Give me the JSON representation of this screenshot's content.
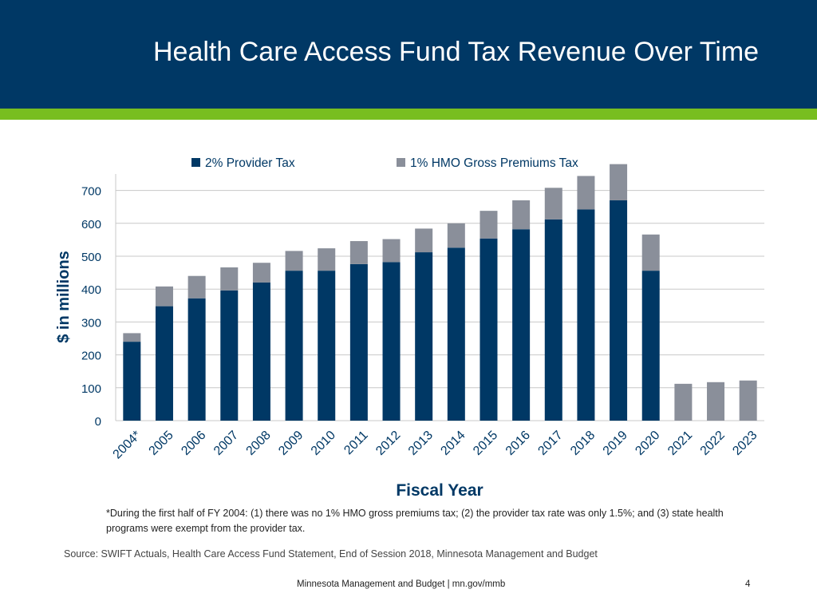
{
  "slide": {
    "title": "Health Care Access Fund Tax Revenue Over Time",
    "footnote": "*During the first half of FY 2004: (1) there was no 1% HMO gross premiums tax; (2) the provider tax rate was only 1.5%; and (3) state health programs were exempt from the provider tax.",
    "source": "Source: SWIFT Actuals, Health Care Access Fund Statement, End of Session 2018, Minnesota Management and Budget",
    "footer": "Minnesota Management and Budget  |  mn.gov/mmb",
    "page_number": "4"
  },
  "colors": {
    "header_bg": "#003865",
    "accent_stripe": "#78be20",
    "provider_tax": "#003865",
    "hmo_tax": "#8a8f9a",
    "axis_text": "#003865",
    "gridline": "#c8c8c8"
  },
  "chart_data": {
    "type": "bar",
    "stacked": true,
    "title": "",
    "xlabel": "Fiscal Year",
    "ylabel": "$ in millions",
    "ylim": [
      0,
      750
    ],
    "yticks": [
      0,
      100,
      200,
      300,
      400,
      500,
      600,
      700
    ],
    "grid": true,
    "legend_position": "top",
    "categories": [
      "2004*",
      "2005",
      "2006",
      "2007",
      "2008",
      "2009",
      "2010",
      "2011",
      "2012",
      "2013",
      "2014",
      "2015",
      "2016",
      "2017",
      "2018",
      "2019",
      "2020",
      "2021",
      "2022",
      "2023"
    ],
    "series": [
      {
        "name": "2% Provider Tax",
        "values": [
          240,
          348,
          372,
          396,
          420,
          456,
          456,
          476,
          482,
          512,
          526,
          554,
          582,
          612,
          642,
          670,
          456,
          0,
          0,
          0
        ]
      },
      {
        "name": "1% HMO Gross Premiums Tax",
        "values": [
          26,
          60,
          68,
          70,
          60,
          60,
          68,
          70,
          70,
          72,
          74,
          84,
          88,
          96,
          102,
          110,
          110,
          112,
          117,
          122
        ]
      }
    ]
  }
}
